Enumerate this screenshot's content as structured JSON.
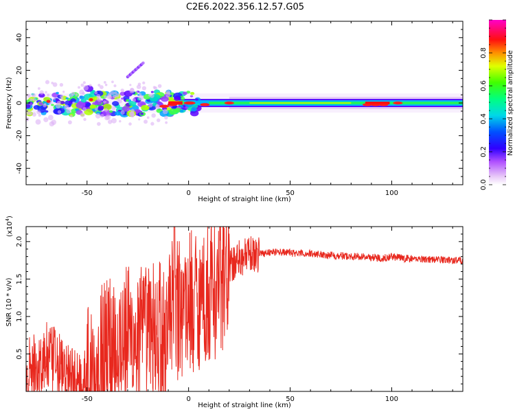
{
  "title": "C2E6.2022.356.12.57.G05",
  "chart_data": [
    {
      "type": "heatmap",
      "title": "C2E6.2022.356.12.57.G05",
      "xlabel": "Height of straight line (km)",
      "ylabel": "Frequency (Hz)",
      "xlim": [
        -80,
        135
      ],
      "ylim": [
        -50,
        50
      ],
      "xticks": [
        -50,
        0,
        50,
        100
      ],
      "yticks": [
        -40,
        -20,
        0,
        20,
        40
      ],
      "colorbar": {
        "label": "Normalized spectral amplitude",
        "range": [
          0,
          1
        ],
        "ticks": [
          0.0,
          0.2,
          0.4,
          0.6,
          0.8
        ],
        "tick_labels": [
          "0.0",
          "0.2",
          "0.4",
          "0.6",
          "0.8"
        ],
        "colormap": [
          "#ffffff",
          "#d9a3f5",
          "#7b00ff",
          "#0000ff",
          "#00c8ff",
          "#00ff80",
          "#40ff00",
          "#ffff00",
          "#ff8000",
          "#ff0000",
          "#ff00c8"
        ]
      },
      "features": [
        {
          "name": "main-band",
          "x": [
            -80,
            135
          ],
          "center_freq": 0,
          "amplitude_range": [
            0.4,
            0.8
          ]
        },
        {
          "name": "harmonic-streak",
          "x": [
            -30,
            -22
          ],
          "freq": [
            16,
            25
          ]
        },
        {
          "name": "high-amplitude-segments",
          "x": [
            -10,
            0,
            90,
            100
          ],
          "freq": [
            0,
            0,
            0,
            0
          ]
        }
      ]
    },
    {
      "type": "line",
      "xlabel": "Height of straight line (km)",
      "ylabel": "SNR (10 * v/v)",
      "y_multiplier": "(x10",
      "y_multiplier_exp": "4",
      "y_multiplier_close": ")",
      "xlim": [
        -80,
        135
      ],
      "ylim": [
        0,
        2.2
      ],
      "xticks": [
        -50,
        0,
        50,
        100
      ],
      "yticks": [
        0.5,
        1.0,
        1.5,
        2.0
      ],
      "ytick_labels": [
        "0.5",
        "1.0",
        "1.5",
        "2.0"
      ],
      "color": "#e8281e",
      "series": [
        {
          "name": "SNR",
          "x": [
            -80,
            -75,
            -70,
            -65,
            -60,
            -55,
            -50,
            -45,
            -40,
            -35,
            -30,
            -25,
            -20,
            -15,
            -10,
            -5,
            0,
            5,
            10,
            15,
            20,
            25,
            30,
            35,
            40,
            45,
            50,
            55,
            60,
            65,
            70,
            75,
            80,
            85,
            90,
            95,
            100,
            105,
            110,
            115,
            120,
            125,
            130,
            135
          ],
          "values": [
            0.2,
            0.3,
            0.45,
            0.35,
            0.2,
            0.1,
            0.15,
            0.35,
            0.6,
            0.7,
            0.75,
            0.7,
            0.75,
            0.85,
            1.0,
            1.1,
            1.2,
            1.25,
            1.3,
            1.45,
            1.65,
            1.78,
            1.82,
            1.84,
            1.86,
            1.86,
            1.85,
            1.84,
            1.84,
            1.83,
            1.82,
            1.81,
            1.8,
            1.8,
            1.79,
            1.78,
            1.8,
            1.78,
            1.77,
            1.77,
            1.76,
            1.76,
            1.75,
            1.75
          ]
        }
      ]
    }
  ]
}
